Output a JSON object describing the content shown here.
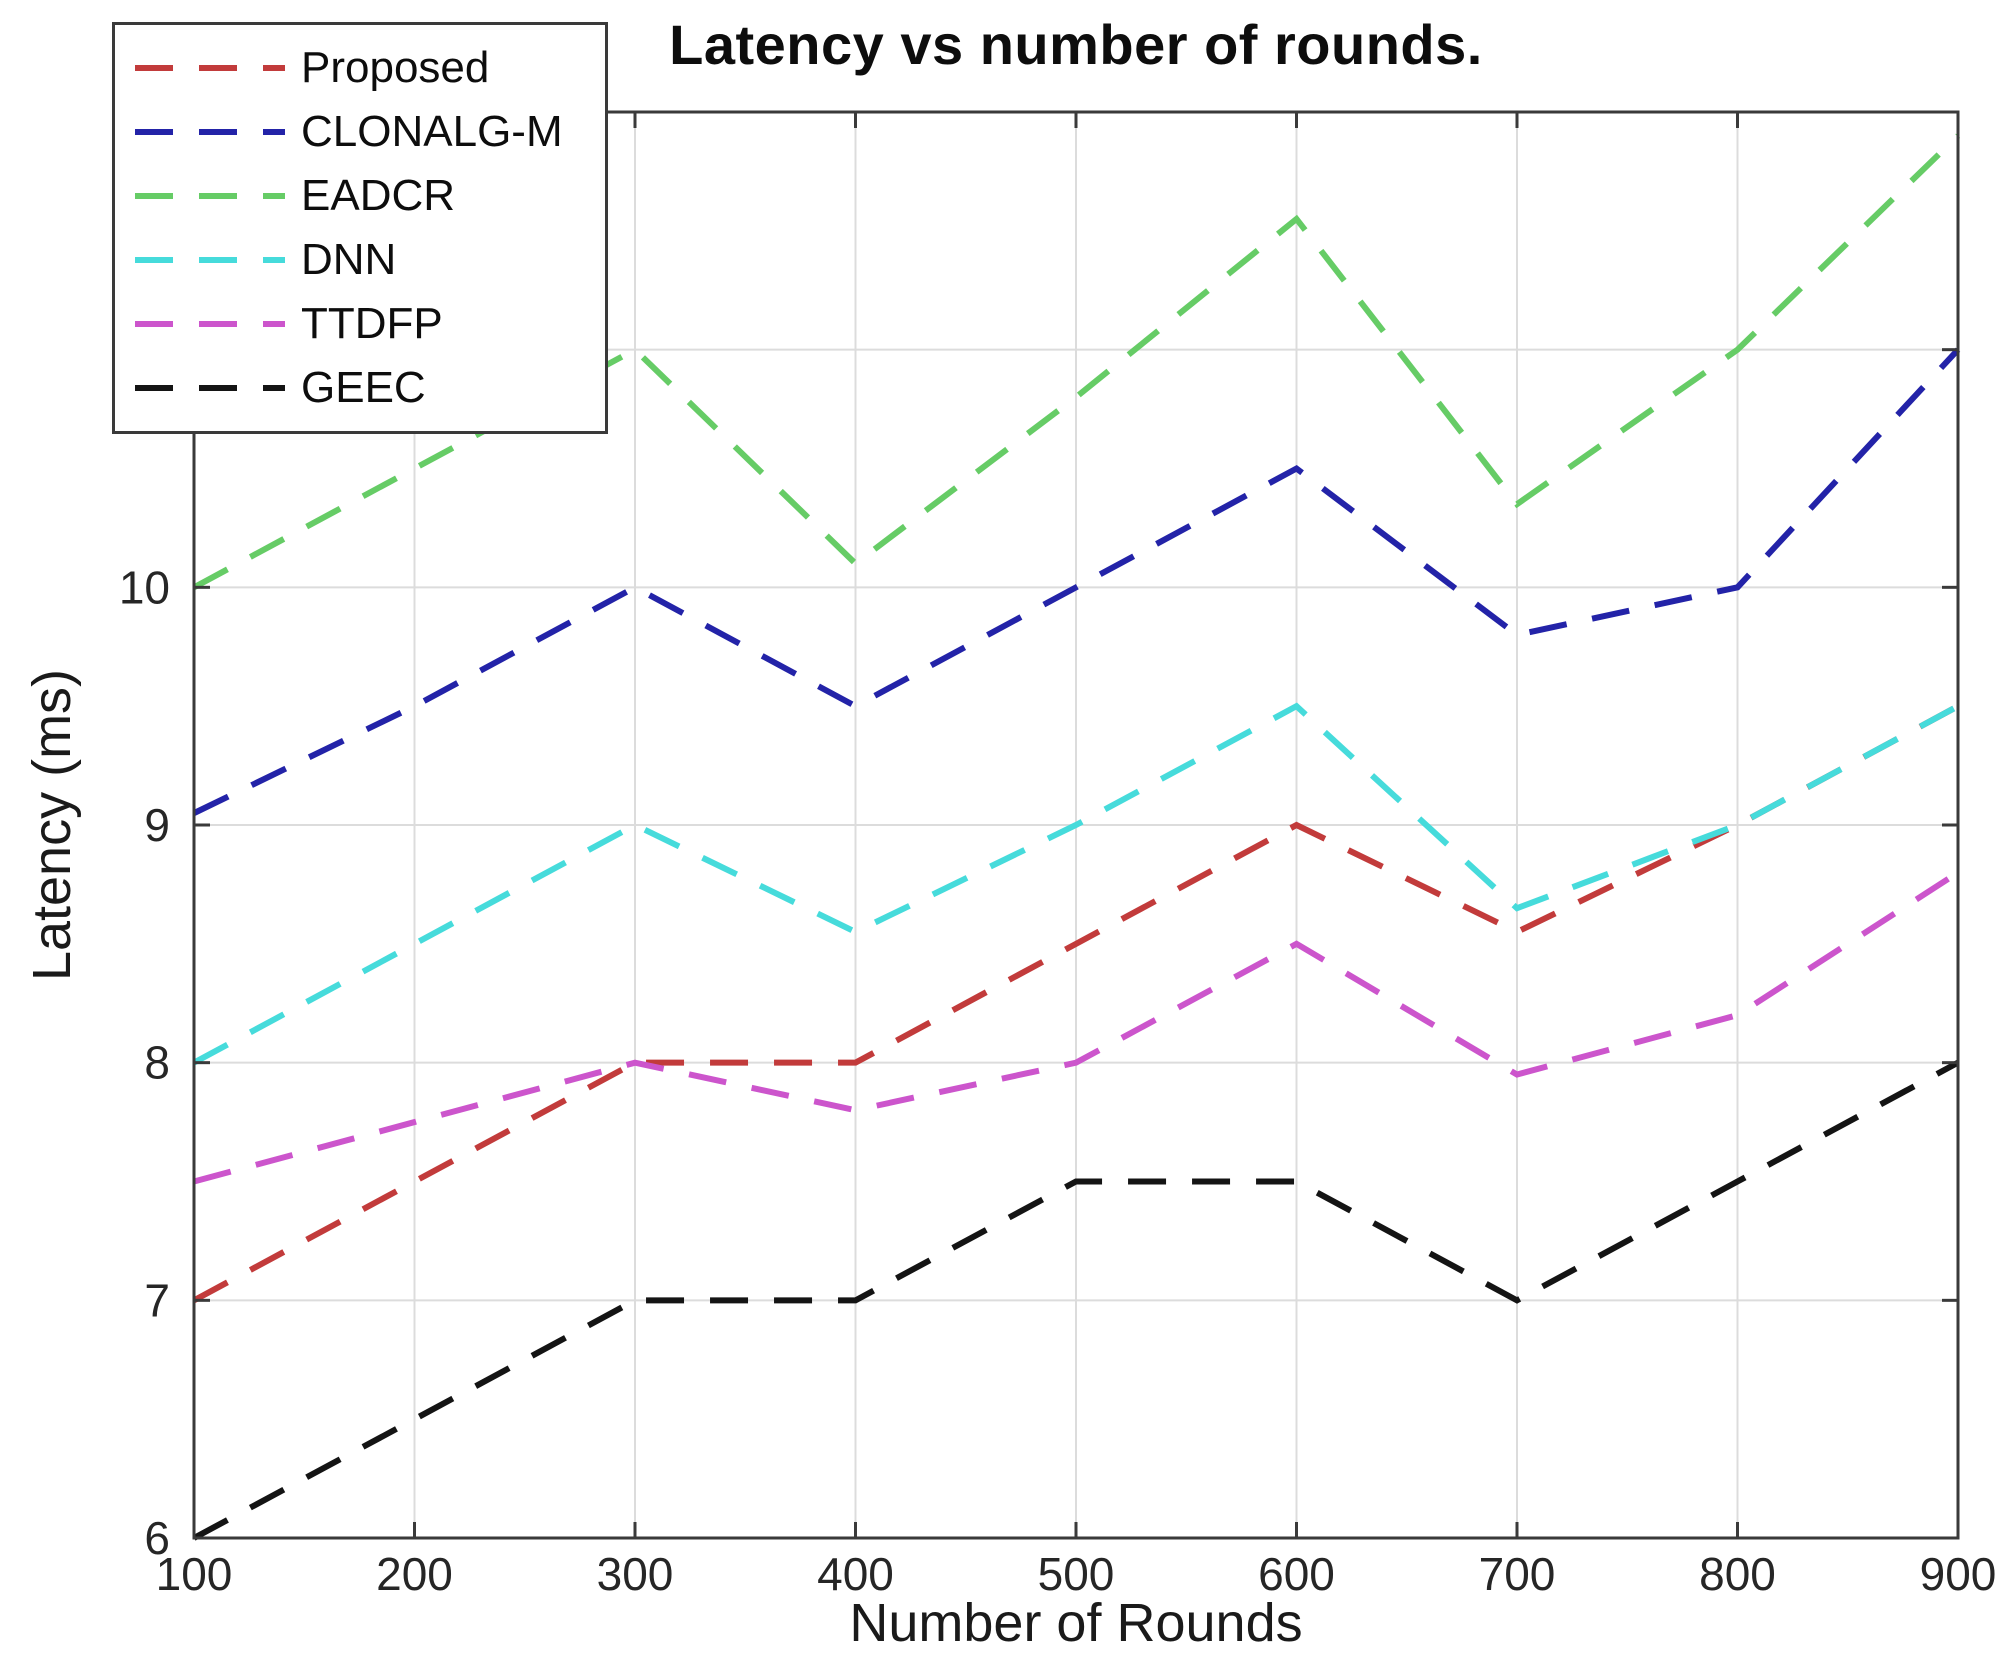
{
  "chart_data": {
    "type": "line",
    "title": "Latency vs number of rounds.",
    "xlabel": "Number of Rounds",
    "ylabel": "Latency (ms)",
    "x": [
      100,
      200,
      300,
      400,
      500,
      600,
      700,
      800,
      900
    ],
    "xlim": [
      100,
      900
    ],
    "ylim": [
      6,
      12
    ],
    "xticks": [
      100,
      200,
      300,
      400,
      500,
      600,
      700,
      800,
      900
    ],
    "yticks": [
      6,
      7,
      8,
      9,
      10,
      11,
      12
    ],
    "grid": true,
    "line_style": "dashed",
    "legend_position": "top-left",
    "frame_color": "#3a3a3a",
    "grid_color": "#dcdcdc",
    "tick_label_color": "#262626",
    "series": [
      {
        "name": "Proposed",
        "color": "#c23b3b",
        "style": "dashed",
        "values": [
          7.0,
          7.5,
          8.0,
          8.0,
          8.5,
          9.0,
          8.55,
          9.0,
          9.5
        ]
      },
      {
        "name": "CLONALG-M",
        "color": "#2323a8",
        "style": "dashed",
        "values": [
          9.05,
          9.5,
          10.0,
          9.5,
          10.0,
          10.5,
          9.8,
          10.0,
          11.0
        ]
      },
      {
        "name": "EADCR",
        "color": "#66cc66",
        "style": "dashed",
        "values": [
          10.0,
          10.5,
          11.0,
          10.1,
          10.8,
          11.55,
          10.35,
          11.0,
          11.9
        ]
      },
      {
        "name": "DNN",
        "color": "#46dbdb",
        "style": "dashed",
        "values": [
          8.0,
          8.5,
          9.0,
          8.55,
          9.0,
          9.5,
          8.65,
          9.0,
          9.5
        ]
      },
      {
        "name": "TTDFP",
        "color": "#cc55cc",
        "style": "dashed",
        "values": [
          7.5,
          7.75,
          8.0,
          7.8,
          8.0,
          8.5,
          7.95,
          8.2,
          8.8
        ]
      },
      {
        "name": "GEEC",
        "color": "#141414",
        "style": "dashed",
        "values": [
          6.0,
          6.5,
          7.0,
          7.0,
          7.5,
          7.5,
          7.0,
          7.5,
          8.0
        ]
      }
    ]
  }
}
